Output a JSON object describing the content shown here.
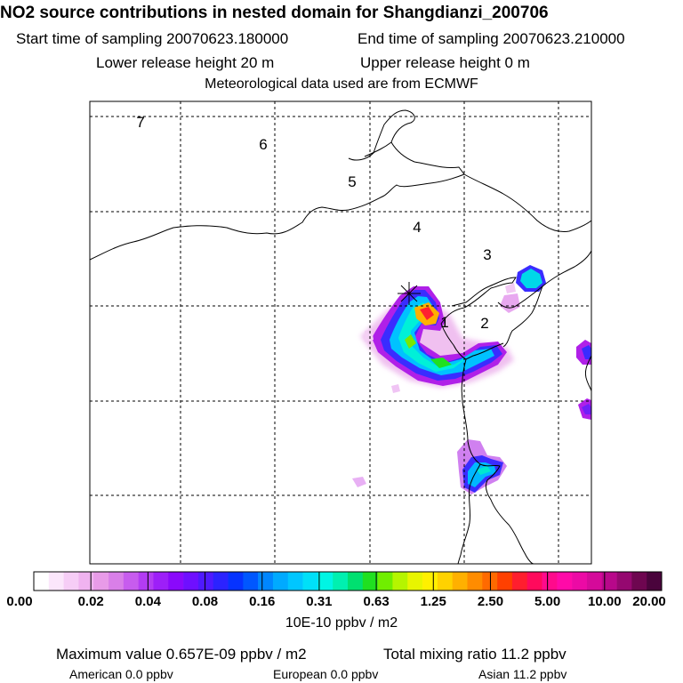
{
  "header": {
    "title": "NO2 source contributions in nested domain for Shangdianzi_200706",
    "start": "Start time of sampling 20070623.180000",
    "end": "End time of sampling 20070623.210000",
    "lower": "Lower release height   20 m",
    "upper": "Upper release height    0 m",
    "met": "Meteorological data used are from ECMWF"
  },
  "map": {
    "sector_labels": [
      "1",
      "2",
      "3",
      "4",
      "5",
      "6",
      "7"
    ],
    "release_site_icon": "asterisk-marker-icon"
  },
  "colorbar": {
    "tick_labels": [
      "0.00",
      "0.02",
      "0.04",
      "0.08",
      "0.16",
      "0.31",
      "0.63",
      "1.25",
      "2.50",
      "5.00",
      "10.00",
      "20.00"
    ],
    "colors": [
      "#ffffff",
      "#fbe6fb",
      "#f6cdf6",
      "#f0b3f0",
      "#e89be8",
      "#d97fe8",
      "#c75cee",
      "#b33cf3",
      "#9d1ff8",
      "#8a09fb",
      "#6f0fff",
      "#4f19ff",
      "#2b23ff",
      "#0633ff",
      "#0057ff",
      "#0086ff",
      "#00aaff",
      "#00c6ff",
      "#00e0f8",
      "#00f5e4",
      "#00f0b0",
      "#00e070",
      "#20e020",
      "#70ee00",
      "#b5f500",
      "#e8f500",
      "#fff000",
      "#ffd200",
      "#ffb000",
      "#ff8c00",
      "#ff6a00",
      "#ff4000",
      "#ff1e2e",
      "#ff0a5c",
      "#ff0a8c",
      "#ff0aa8",
      "#ec0aa5",
      "#d50a9a",
      "#b8088a",
      "#950870",
      "#6e0650",
      "#4a043c"
    ],
    "unit": "10E-10 ppbv / m2"
  },
  "footer": {
    "max_value": "Maximum value  0.657E-09 ppbv / m2",
    "total": "Total mixing ratio      11.2 ppbv",
    "american": "American       0.0 ppbv",
    "european": "European       0.0 ppbv",
    "asian": "Asian      11.2 ppbv"
  }
}
